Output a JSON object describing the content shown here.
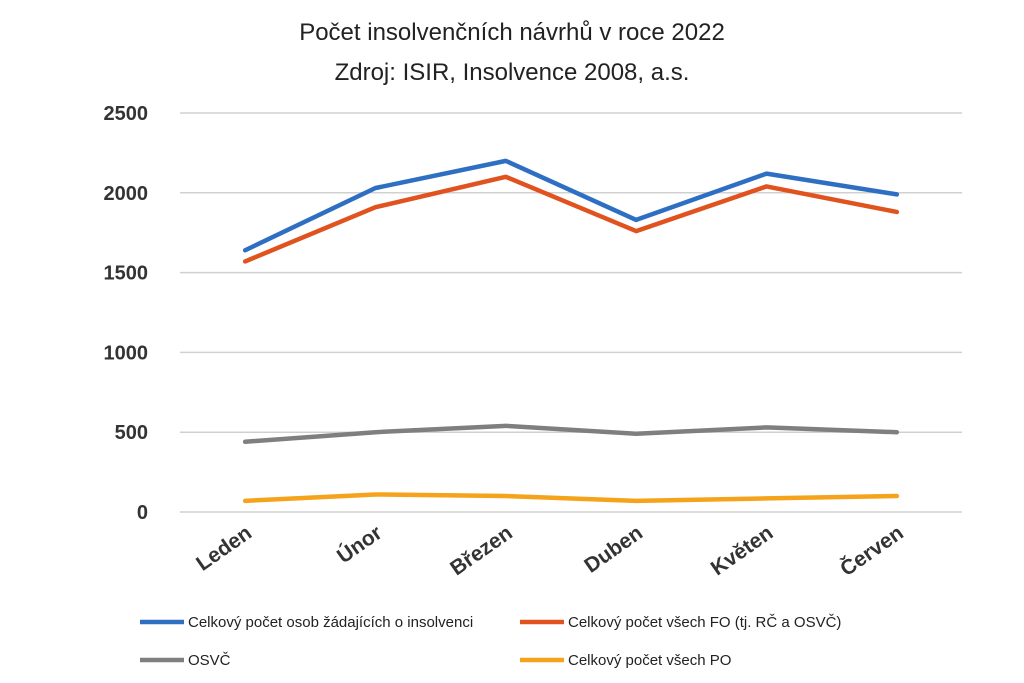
{
  "chart_data": {
    "type": "line",
    "title": "Počet insolvenčních návrhů v roce 2022",
    "subtitle": "Zdroj: ISIR, Insolvence 2008, a.s.",
    "categories": [
      "Leden",
      "Únor",
      "Březen",
      "Duben",
      "Květen",
      "Červen"
    ],
    "ylim": [
      0,
      2500
    ],
    "yticks": [
      0,
      500,
      1000,
      1500,
      2000,
      2500
    ],
    "grid": true,
    "legend_position": "bottom",
    "series": [
      {
        "name": "Celkový počet osob žádajících o insolvenci",
        "color": "#2e6fc4",
        "values": [
          1640,
          2030,
          2200,
          1830,
          2120,
          1990
        ]
      },
      {
        "name": "Celkový počet všech FO (tj. RČ a OSVČ)",
        "color": "#e0531f",
        "values": [
          1570,
          1910,
          2100,
          1760,
          2040,
          1880
        ]
      },
      {
        "name": "OSVČ",
        "color": "#7f7f7f",
        "values": [
          440,
          500,
          540,
          490,
          530,
          500
        ]
      },
      {
        "name": "Celkový počet všech PO",
        "color": "#f5a31a",
        "values": [
          70,
          110,
          100,
          70,
          85,
          100
        ]
      }
    ]
  }
}
